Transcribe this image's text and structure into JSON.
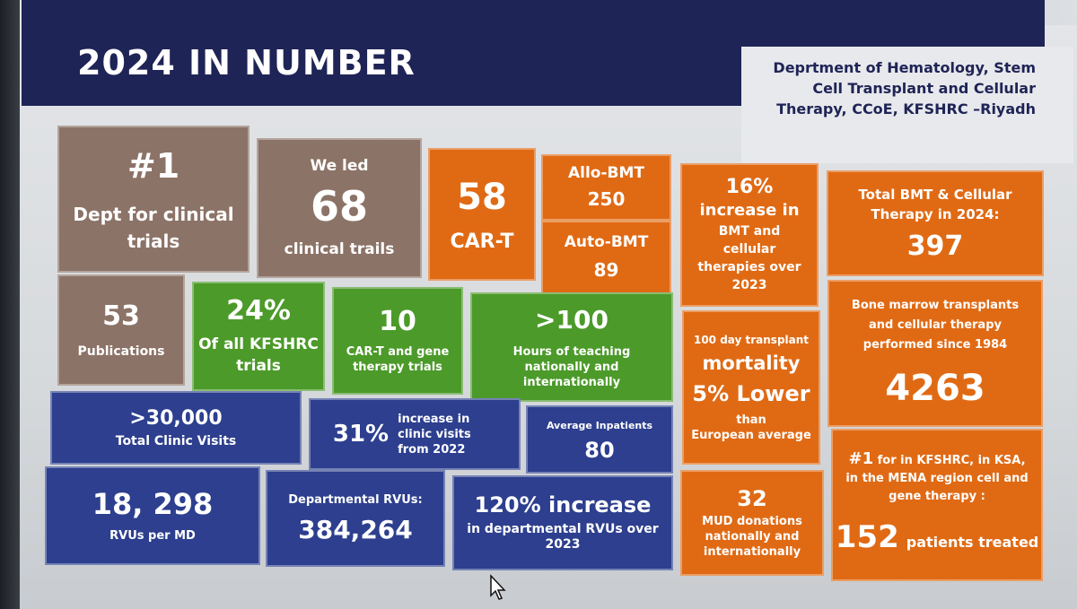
{
  "header": {
    "title": "2024 IN NUMBER",
    "department": "Deprtment of Hematology, Stem Cell Transplant and Cellular Therapy, CCoE, KFSHRC –Riyadh"
  },
  "tiles": {
    "rank_clinical_trials": {
      "value": "#1",
      "label": "Dept for  clinical trials"
    },
    "led_trials": {
      "prefix": "We led",
      "value": "68",
      "label": "clinical trails"
    },
    "car_t": {
      "value": "58",
      "label": "CAR-T"
    },
    "allo_bmt": {
      "label": "Allo-BMT",
      "value": "250"
    },
    "auto_bmt": {
      "label": "Auto-BMT",
      "value": "89"
    },
    "increase_bmt": {
      "value": "16%",
      "label1": "increase in",
      "label2": "BMT and cellular therapies over 2023"
    },
    "total_bmt": {
      "label": "Total BMT & Cellular Therapy in 2024:",
      "value": "397"
    },
    "publications": {
      "value": "53",
      "label": "Publications"
    },
    "kfshrc_trials": {
      "value": "24%",
      "label": "Of all KFSHRC trials"
    },
    "gene_trials": {
      "value": "10",
      "label": "CAR-T and gene therapy trials"
    },
    "teaching": {
      "value": ">100",
      "label": "Hours of teaching nationally and internationally"
    },
    "mortality": {
      "label1": "100 day transplant",
      "label2": "mortality",
      "value": "5% Lower",
      "label3": "than",
      "label4": "European average"
    },
    "since_1984": {
      "label": "Bone marrow transplants and cellular therapy performed since 1984",
      "value": "4263"
    },
    "clinic_visits": {
      "value": ">30,000",
      "label": "Total Clinic Visits"
    },
    "clinic_increase": {
      "value": "31%",
      "label": "increase in clinic visits from 2022"
    },
    "inpatients": {
      "label": "Average Inpatients",
      "value": "80"
    },
    "rvus_md": {
      "value": "18, 298",
      "label": "RVUs per MD"
    },
    "dept_rvus": {
      "label": "Departmental RVUs:",
      "value": "384,264"
    },
    "rvu_increase": {
      "value": "120% increase",
      "label": "in departmental RVUs over 2023"
    },
    "mud": {
      "value": "32",
      "label": "MUD donations nationally and internationally"
    },
    "mena": {
      "rank": "#1",
      "label": "for in KFSHRC, in  KSA, in the MENA region cell and gene therapy :",
      "value": "152",
      "unit": "patients treated"
    }
  },
  "colors": {
    "header": "#1f2456",
    "brown": "#8c7367",
    "orange": "#e06a14",
    "green": "#4c9a2a",
    "blue": "#2d3f8e"
  }
}
